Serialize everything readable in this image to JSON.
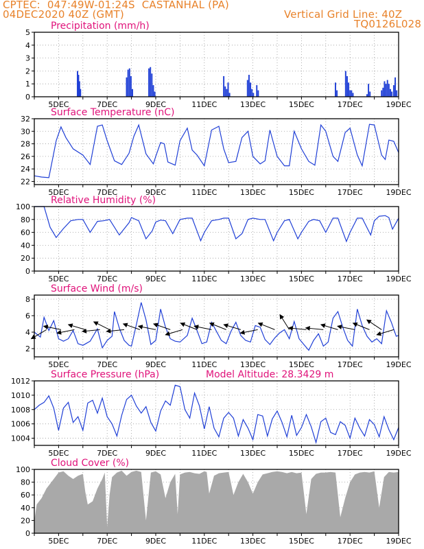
{
  "header": {
    "line1": "CPTEC:  047:49W-01:24S  CASTANHAL (PA)",
    "line2": "04DEC2020 40Z (GMT)",
    "grid_note": "Vertical Grid Line: 40Z",
    "code": "TQ0126L028"
  },
  "colors": {
    "header": "#e8822a",
    "title": "#e0127a",
    "series": "#1f3fd6",
    "cloud": "#a9a9a9",
    "arrow": "#000000"
  },
  "chart_data": [
    {
      "id": "precip",
      "type": "bar",
      "title": "Precipitation (mm/h)",
      "ylim": [
        0,
        5
      ],
      "yticks": [
        0,
        1,
        2,
        3,
        4,
        5
      ],
      "xticks": [
        "5DEC",
        "7DEC",
        "9DEC",
        "11DEC",
        "13DEC",
        "15DEC",
        "17DEC",
        "19DEC"
      ],
      "x_unit": "days since 04DEC 00Z",
      "xlim": [
        0,
        15
      ],
      "x": [
        1.78,
        1.82,
        1.86,
        1.9,
        3.8,
        3.86,
        3.92,
        3.98,
        4.04,
        4.72,
        4.78,
        4.84,
        4.9,
        4.96,
        7.8,
        7.86,
        7.92,
        7.98,
        8.04,
        8.78,
        8.84,
        8.9,
        8.96,
        9.02,
        9.16,
        9.22,
        12.82,
        12.88,
        12.94,
        13.0,
        13.06,
        13.12,
        12.4,
        12.46,
        13.7,
        13.76,
        13.82,
        14.3,
        14.36,
        14.42,
        14.48,
        14.54,
        14.6,
        14.66,
        14.72,
        14.8,
        14.86,
        14.92
      ],
      "values": [
        2.0,
        1.7,
        1.2,
        0.6,
        1.5,
        2.1,
        2.2,
        1.6,
        0.6,
        2.2,
        2.3,
        1.8,
        0.9,
        0.4,
        1.6,
        0.8,
        0.6,
        1.1,
        0.3,
        1.3,
        1.7,
        1.1,
        0.6,
        0.3,
        0.9,
        0.5,
        2.0,
        1.6,
        1.1,
        0.5,
        0.5,
        0.3,
        1.1,
        0.5,
        0.2,
        1.0,
        0.4,
        0.5,
        0.7,
        1.2,
        1.0,
        1.3,
        1.0,
        0.6,
        0.4,
        0.9,
        1.5,
        0.5
      ]
    },
    {
      "id": "temp",
      "type": "line",
      "title": "Surface Temperature (nC)",
      "ylim": [
        21.5,
        32.0
      ],
      "yticks": [
        22,
        24,
        26,
        28,
        30,
        32
      ],
      "xticks": [
        "5DEC",
        "7DEC",
        "9DEC",
        "11DEC",
        "13DEC",
        "15DEC",
        "17DEC",
        "19DEC"
      ],
      "x_unit": "days since 04DEC 00Z",
      "xlim": [
        0,
        15
      ],
      "x": [
        0,
        0.3,
        0.6,
        0.75,
        0.9,
        1.1,
        1.3,
        1.6,
        2.0,
        2.3,
        2.6,
        2.8,
        3.0,
        3.3,
        3.6,
        3.9,
        4.1,
        4.3,
        4.6,
        4.9,
        5.0,
        5.2,
        5.35,
        5.5,
        5.8,
        6.0,
        6.3,
        6.5,
        6.7,
        7.0,
        7.3,
        7.6,
        7.8,
        8.0,
        8.3,
        8.55,
        8.8,
        9.0,
        9.3,
        9.5,
        9.7,
        10.0,
        10.3,
        10.5,
        10.7,
        11.0,
        11.3,
        11.55,
        11.8,
        12.0,
        12.3,
        12.5,
        12.8,
        13.0,
        13.3,
        13.5,
        13.8,
        14.0,
        14.3,
        14.45,
        14.6,
        14.8,
        15.0
      ],
      "values": [
        22.9,
        22.7,
        22.6,
        25.5,
        28.5,
        30.7,
        29.0,
        27.2,
        26.2,
        24.7,
        30.8,
        31.0,
        28.5,
        25.3,
        24.7,
        26.5,
        29.2,
        31.0,
        26.4,
        24.8,
        26.0,
        28.2,
        28.0,
        25.1,
        24.6,
        28.5,
        30.5,
        27.0,
        26.2,
        24.5,
        30.2,
        30.8,
        27.2,
        25.0,
        25.2,
        29.0,
        30.0,
        26.0,
        24.8,
        25.3,
        30.2,
        26.0,
        24.5,
        24.5,
        30.0,
        27.2,
        25.2,
        24.6,
        31.0,
        30.0,
        26.0,
        25.2,
        29.8,
        30.5,
        26.2,
        24.5,
        31.1,
        31.0,
        26.2,
        25.5,
        28.6,
        28.4,
        26.6
      ]
    },
    {
      "id": "rh",
      "type": "line",
      "title": "Relative Humidity (%)",
      "ylim": [
        0,
        100
      ],
      "yticks": [
        0,
        20,
        40,
        60,
        80,
        100
      ],
      "xticks": [
        "5DEC",
        "7DEC",
        "9DEC",
        "11DEC",
        "13DEC",
        "15DEC",
        "17DEC",
        "19DEC"
      ],
      "x_unit": "days since 04DEC 00Z",
      "xlim": [
        0,
        15
      ],
      "x": [
        0,
        0.4,
        0.65,
        0.9,
        1.2,
        1.5,
        1.8,
        2.0,
        2.3,
        2.6,
        2.85,
        3.1,
        3.5,
        3.9,
        4.0,
        4.3,
        4.6,
        4.85,
        5.0,
        5.2,
        5.4,
        5.7,
        6.0,
        6.3,
        6.5,
        6.85,
        7.0,
        7.3,
        7.6,
        7.8,
        8.0,
        8.3,
        8.55,
        8.8,
        9.0,
        9.3,
        9.5,
        9.85,
        10.0,
        10.3,
        10.5,
        10.85,
        11.0,
        11.3,
        11.5,
        11.75,
        12.0,
        12.3,
        12.5,
        12.85,
        13.0,
        13.3,
        13.5,
        13.85,
        14.0,
        14.2,
        14.45,
        14.6,
        14.75,
        15.0
      ],
      "values": [
        100,
        100,
        68,
        52,
        66,
        78,
        80,
        80,
        60,
        77,
        78,
        80,
        56,
        75,
        83,
        78,
        50,
        62,
        76,
        79,
        78,
        58,
        80,
        82,
        82,
        47,
        60,
        78,
        80,
        82,
        82,
        50,
        58,
        80,
        82,
        80,
        80,
        47,
        60,
        78,
        80,
        50,
        60,
        77,
        80,
        78,
        60,
        82,
        82,
        46,
        60,
        82,
        82,
        56,
        78,
        85,
        86,
        83,
        65,
        82
      ]
    },
    {
      "id": "wind",
      "type": "line",
      "title": "Surface Wind (m/s)",
      "ylim": [
        1.0,
        8.5
      ],
      "yticks": [
        2,
        4,
        6,
        8
      ],
      "xticks": [
        "5DEC",
        "7DEC",
        "9DEC",
        "11DEC",
        "13DEC",
        "15DEC",
        "17DEC",
        "19DEC"
      ],
      "x_unit": "days since 04DEC 00Z",
      "xlim": [
        0,
        15
      ],
      "x": [
        0,
        0.25,
        0.4,
        0.6,
        0.8,
        1.0,
        1.2,
        1.4,
        1.6,
        1.8,
        2.0,
        2.3,
        2.6,
        2.8,
        3.0,
        3.2,
        3.3,
        3.5,
        3.7,
        3.9,
        4.0,
        4.2,
        4.4,
        4.6,
        4.8,
        5.0,
        5.2,
        5.4,
        5.6,
        5.8,
        6.0,
        6.3,
        6.5,
        6.7,
        6.9,
        7.1,
        7.3,
        7.5,
        7.7,
        7.9,
        8.1,
        8.3,
        8.5,
        8.7,
        8.9,
        9.1,
        9.3,
        9.5,
        9.7,
        9.9,
        10.1,
        10.3,
        10.5,
        10.7,
        10.9,
        11.1,
        11.3,
        11.5,
        11.7,
        11.9,
        12.1,
        12.3,
        12.5,
        12.7,
        12.9,
        13.1,
        13.3,
        13.5,
        13.7,
        13.9,
        14.1,
        14.3,
        14.5,
        14.7,
        14.9,
        15.0
      ],
      "values": [
        4.0,
        3.4,
        5.8,
        4.2,
        5.4,
        3.2,
        2.9,
        3.2,
        4.2,
        2.6,
        2.4,
        2.9,
        4.4,
        2.1,
        3.0,
        3.5,
        6.5,
        4.5,
        3.0,
        2.4,
        2.3,
        4.9,
        7.6,
        5.5,
        2.5,
        3.0,
        6.8,
        4.6,
        3.2,
        2.9,
        2.8,
        3.6,
        5.7,
        4.2,
        2.6,
        2.8,
        5.2,
        4.1,
        3.0,
        2.6,
        4.1,
        5.2,
        3.6,
        3.0,
        2.8,
        4.8,
        4.6,
        3.1,
        2.5,
        3.3,
        3.9,
        4.3,
        3.2,
        5.3,
        3.2,
        2.5,
        1.8,
        3.0,
        3.8,
        2.3,
        2.8,
        5.7,
        6.5,
        4.6,
        3.0,
        2.3,
        6.8,
        4.8,
        3.5,
        2.8,
        3.2,
        2.6,
        6.6,
        5.2,
        3.5,
        3.6
      ],
      "arrows": [
        {
          "x": 0.5,
          "u": -1,
          "v": -0.6
        },
        {
          "x": 1.1,
          "u": -1,
          "v": 0.2
        },
        {
          "x": 1.65,
          "u": -1,
          "v": -0.2
        },
        {
          "x": 2.1,
          "u": -1,
          "v": 0.3
        },
        {
          "x": 2.7,
          "u": -1,
          "v": -0.1
        },
        {
          "x": 3.1,
          "u": -1,
          "v": 0.5
        },
        {
          "x": 3.7,
          "u": -1,
          "v": -0.1
        },
        {
          "x": 4.35,
          "u": -1,
          "v": 0.35
        },
        {
          "x": 5.0,
          "u": -1,
          "v": 0.2
        },
        {
          "x": 5.6,
          "u": -1,
          "v": 0.35
        },
        {
          "x": 6.1,
          "u": -1,
          "v": -0.3
        },
        {
          "x": 6.7,
          "u": -1,
          "v": 0.4
        },
        {
          "x": 7.3,
          "u": -1,
          "v": 0.2
        },
        {
          "x": 7.9,
          "u": -1,
          "v": 0.4
        },
        {
          "x": 8.5,
          "u": -1,
          "v": 0.3
        },
        {
          "x": 9.2,
          "u": -1,
          "v": -0.2
        },
        {
          "x": 9.9,
          "u": -1,
          "v": 0.4
        },
        {
          "x": 10.5,
          "u": -0.5,
          "v": 0.8
        },
        {
          "x": 11.2,
          "u": -1,
          "v": 0.1
        },
        {
          "x": 11.9,
          "u": -1,
          "v": 0.1
        },
        {
          "x": 12.5,
          "u": -1,
          "v": 0.3
        },
        {
          "x": 13.2,
          "u": -1,
          "v": 0.2
        },
        {
          "x": 13.8,
          "u": -1,
          "v": 0.4
        },
        {
          "x": 14.3,
          "u": -0.9,
          "v": 0.6
        },
        {
          "x": 14.8,
          "u": -1,
          "v": -0.3
        }
      ]
    },
    {
      "id": "pressure",
      "type": "line",
      "title": "Surface Pressure (hPa)",
      "subtitle": "Model Altitude: 28.3429 m",
      "ylim": [
        1003.0,
        1012.0
      ],
      "yticks": [
        1004,
        1006,
        1008,
        1010,
        1012
      ],
      "xticks": [
        "5DEC",
        "7DEC",
        "9DEC",
        "11DEC",
        "13DEC",
        "15DEC",
        "17DEC",
        "19DEC"
      ],
      "x_unit": "days since 04DEC 00Z",
      "xlim": [
        0,
        15
      ],
      "x": [
        0,
        0.2,
        0.4,
        0.6,
        0.8,
        1.0,
        1.2,
        1.4,
        1.6,
        1.8,
        2.0,
        2.2,
        2.4,
        2.6,
        2.8,
        3.0,
        3.2,
        3.4,
        3.6,
        3.8,
        4.0,
        4.2,
        4.4,
        4.6,
        4.8,
        5.0,
        5.2,
        5.4,
        5.6,
        5.8,
        6.0,
        6.2,
        6.4,
        6.6,
        6.8,
        7.0,
        7.2,
        7.4,
        7.6,
        7.8,
        8.0,
        8.2,
        8.4,
        8.6,
        8.8,
        9.0,
        9.2,
        9.4,
        9.6,
        9.8,
        10.0,
        10.2,
        10.4,
        10.6,
        10.8,
        11.0,
        11.2,
        11.4,
        11.6,
        11.8,
        12.0,
        12.2,
        12.4,
        12.6,
        12.8,
        13.0,
        13.2,
        13.4,
        13.6,
        13.8,
        14.0,
        14.2,
        14.4,
        14.6,
        14.8,
        15.0
      ],
      "values": [
        1008.0,
        1008.6,
        1009.0,
        1009.9,
        1008.2,
        1005.1,
        1008.2,
        1009.0,
        1006.2,
        1007.0,
        1005.1,
        1008.9,
        1009.3,
        1007.5,
        1009.6,
        1007.0,
        1006.0,
        1004.3,
        1007.2,
        1009.4,
        1010.0,
        1008.5,
        1007.5,
        1008.4,
        1006.2,
        1005.0,
        1007.8,
        1009.2,
        1008.6,
        1011.4,
        1011.2,
        1008.0,
        1006.8,
        1010.3,
        1008.5,
        1005.3,
        1008.4,
        1005.4,
        1004.2,
        1006.8,
        1007.6,
        1006.8,
        1004.3,
        1006.6,
        1005.4,
        1003.8,
        1007.3,
        1007.1,
        1004.3,
        1006.7,
        1007.8,
        1006.2,
        1004.2,
        1007.2,
        1004.4,
        1005.5,
        1007.3,
        1005.6,
        1003.4,
        1006.3,
        1006.8,
        1004.8,
        1004.5,
        1006.3,
        1005.8,
        1004.0,
        1006.8,
        1005.4,
        1004.3,
        1006.6,
        1005.9,
        1004.2,
        1007.0,
        1005.2,
        1003.8,
        1005.5
      ]
    },
    {
      "id": "cloud",
      "type": "area",
      "title": "Cloud Cover (%)",
      "ylim": [
        0,
        100
      ],
      "yticks": [
        0,
        20,
        40,
        60,
        80,
        100
      ],
      "xticks": [
        "5DEC",
        "7DEC",
        "9DEC",
        "11DEC",
        "13DEC",
        "15DEC",
        "17DEC",
        "19DEC"
      ],
      "x_unit": "days since 04DEC 00Z",
      "xlim": [
        0,
        15
      ],
      "x": [
        0,
        0.1,
        0.3,
        0.5,
        0.7,
        0.9,
        1.0,
        1.2,
        1.4,
        1.6,
        1.8,
        2.0,
        2.1,
        2.2,
        2.4,
        2.6,
        2.8,
        2.9,
        3.0,
        3.1,
        3.2,
        3.4,
        3.6,
        3.8,
        4.0,
        4.2,
        4.4,
        4.6,
        4.8,
        5.0,
        5.2,
        5.4,
        5.6,
        5.8,
        5.9,
        6.0,
        6.2,
        6.4,
        6.6,
        6.8,
        7.0,
        7.1,
        7.2,
        7.4,
        7.6,
        7.8,
        8.0,
        8.2,
        8.4,
        8.6,
        8.8,
        9.0,
        9.2,
        9.4,
        9.6,
        9.8,
        10.0,
        10.2,
        10.4,
        10.6,
        10.8,
        11.0,
        11.2,
        11.4,
        11.6,
        11.8,
        12.0,
        12.2,
        12.4,
        12.6,
        12.8,
        13.0,
        13.2,
        13.4,
        13.6,
        13.8,
        14.0,
        14.2,
        14.4,
        14.6,
        14.8,
        15.0
      ],
      "values": [
        20,
        45,
        55,
        70,
        80,
        90,
        95,
        97,
        90,
        85,
        90,
        93,
        65,
        45,
        50,
        70,
        85,
        95,
        10,
        60,
        88,
        95,
        98,
        90,
        96,
        98,
        96,
        20,
        95,
        97,
        92,
        55,
        80,
        93,
        30,
        92,
        95,
        96,
        94,
        93,
        97,
        96,
        62,
        90,
        94,
        95,
        96,
        60,
        80,
        93,
        80,
        62,
        80,
        92,
        94,
        96,
        97,
        96,
        94,
        96,
        94,
        95,
        30,
        85,
        93,
        95,
        95,
        96,
        95,
        25,
        55,
        80,
        92,
        95,
        96,
        95,
        97,
        40,
        88,
        96,
        95,
        96
      ]
    }
  ]
}
